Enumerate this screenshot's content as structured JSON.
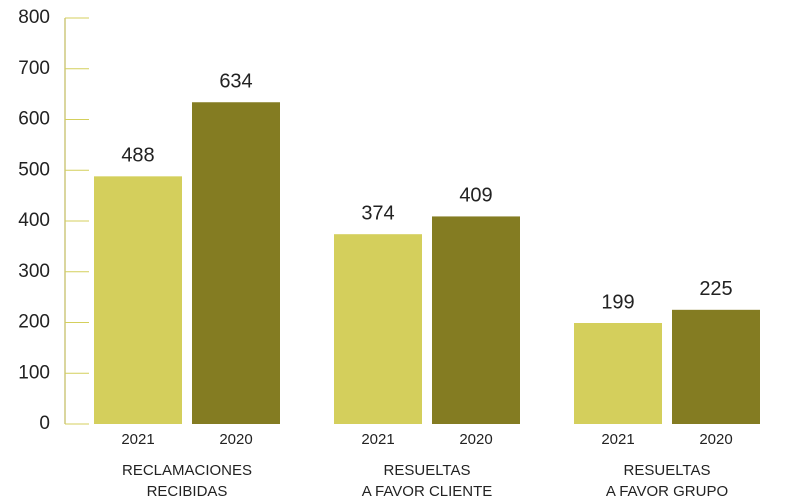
{
  "chart_data": {
    "type": "bar",
    "categories": [
      [
        "RECLAMACIONES",
        "RECIBIDAS"
      ],
      [
        "RESUELTAS",
        "A FAVOR CLIENTE"
      ],
      [
        "RESUELTAS",
        "A FAVOR GRUPO"
      ]
    ],
    "series": [
      {
        "name": "2021",
        "color": "#d4cf5c",
        "values": [
          488,
          374,
          199
        ]
      },
      {
        "name": "2020",
        "color": "#847c22",
        "values": [
          634,
          409,
          225
        ]
      }
    ],
    "ylim": [
      0,
      800
    ],
    "yticks": [
      0,
      100,
      200,
      300,
      400,
      500,
      600,
      700,
      800
    ]
  }
}
